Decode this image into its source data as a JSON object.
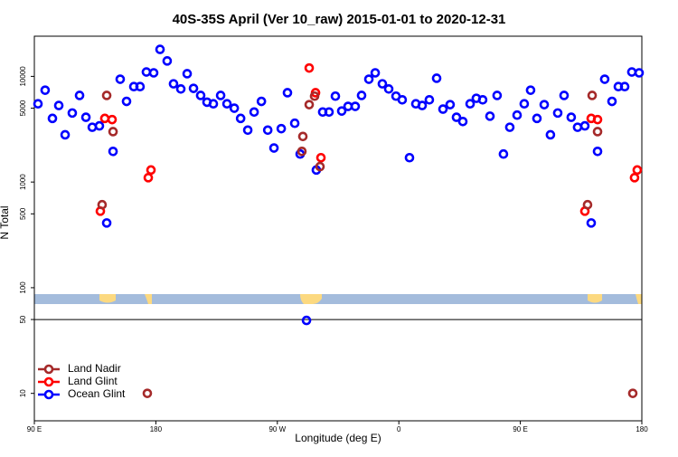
{
  "chart_data": {
    "type": "scatter",
    "title": "40S-35S April (Ver 10_raw)   2015-01-01 to 2020-12-31",
    "x_label": "Longitude (deg E)",
    "y_label": "N Total",
    "log_y": true,
    "xlim": [
      90,
      540
    ],
    "ylim": [
      5.5,
      24000
    ],
    "xticks": [
      {
        "value": 90,
        "label": "90 E"
      },
      180,
      {
        "value": 270,
        "label": "90 W"
      },
      {
        "value": 360,
        "label": "0"
      },
      {
        "value": 450,
        "label": "90 E"
      },
      {
        "value": 540,
        "label": "180"
      }
    ],
    "yticks": [
      10,
      50,
      100,
      500,
      1000,
      5000,
      10000
    ],
    "hlines": [
      50
    ],
    "legend": "lower left",
    "series": [
      {
        "name": "Ocean Glint",
        "color": "#0000ff",
        "x": [
          92.7,
          98.0,
          103.4,
          108.1,
          112.8,
          118.1,
          123.5,
          128.2,
          132.9,
          138.2,
          143.6,
          148.3,
          153.6,
          158.3,
          163.7,
          168.3,
          173.0,
          178.4,
          183.1,
          188.4,
          193.1,
          198.5,
          203.2,
          207.9,
          213.2,
          217.9,
          222.6,
          228.0,
          232.7,
          238.1,
          242.8,
          248.1,
          252.8,
          258.2,
          262.9,
          267.5,
          272.9,
          277.5,
          282.9,
          286.9,
          291.6,
          298.9,
          303.6,
          308.3,
          313.0,
          317.7,
          322.4,
          327.7,
          332.4,
          337.8,
          342.5,
          347.8,
          352.5,
          357.9,
          362.5,
          367.9,
          372.6,
          377.3,
          382.6,
          388.0,
          392.7,
          398.0,
          402.7,
          407.4,
          412.8,
          417.4,
          422.1,
          427.5,
          432.8,
          437.5,
          442.2,
          447.6,
          452.9,
          457.6,
          462.3,
          467.7,
          472.3,
          477.7,
          482.4,
          487.7,
          492.4,
          497.8,
          502.5,
          507.2,
          512.5,
          517.9,
          522.6,
          527.3,
          532.6,
          538.0
        ],
        "values": [
          5500,
          7400,
          4000,
          5300,
          2800,
          4500,
          6600,
          4100,
          3300,
          3400,
          410,
          1950,
          9400,
          5800,
          8000,
          8000,
          11000,
          10800,
          18000,
          14000,
          8500,
          7600,
          10600,
          7700,
          6600,
          5700,
          5500,
          6600,
          5500,
          5000,
          4000,
          3100,
          4600,
          5800,
          3100,
          2100,
          3200,
          7000,
          3600,
          1840,
          49,
          1300,
          4600,
          4600,
          6500,
          4700,
          5200,
          5200,
          6600,
          9400,
          10800,
          8500,
          7600,
          6500,
          6000,
          1700,
          5500,
          5300,
          6000,
          9600,
          4900,
          5400,
          4100,
          3740,
          5500,
          6200,
          6000,
          4200,
          6600,
          1840,
          3300,
          4300,
          5500,
          7400,
          4000,
          5400,
          2800,
          4500,
          6600,
          4100,
          3300,
          3400,
          410,
          1950,
          9400,
          5800,
          8000,
          8000,
          11000,
          10800
        ]
      },
      {
        "name": "Land Glint",
        "color": "#ff0000",
        "x": [
          138.9,
          142.2,
          147.6,
          174.4,
          176.4,
          293.6,
          298.3,
          302.3,
          497.8,
          502.5,
          507.2,
          534.6,
          536.6
        ],
        "values": [
          530,
          4000,
          3900,
          1100,
          1300,
          12000,
          7000,
          1700,
          530,
          4000,
          3900,
          1100,
          1300
        ]
      },
      {
        "name": "Land Nadir",
        "color": "#a52a2a",
        "x": [
          140.2,
          143.6,
          148.3,
          173.7,
          288.9,
          288.2,
          293.6,
          297.6,
          301.6,
          499.8,
          503.2,
          507.2,
          533.3
        ],
        "values": [
          610,
          6600,
          3000,
          10,
          2700,
          1950,
          5400,
          6500,
          1400,
          610,
          6600,
          3000,
          10
        ]
      }
    ]
  }
}
